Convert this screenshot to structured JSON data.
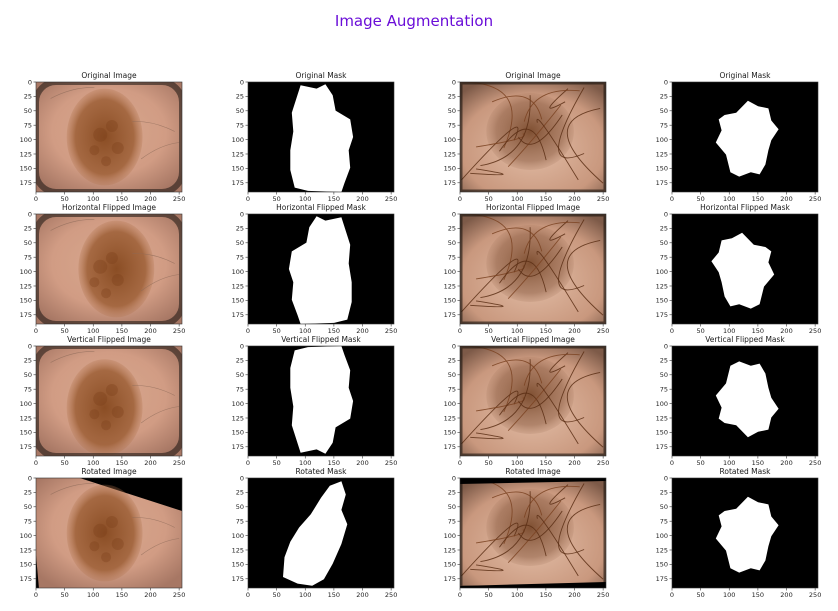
{
  "figure_title": "Image Augmentation",
  "chart_data": {
    "type": "image-grid",
    "title": "Image Augmentation",
    "rows": 4,
    "cols": 4,
    "panel_titles": [
      [
        "Original Image",
        "Original Mask",
        "Original Image",
        "Original Mask"
      ],
      [
        "Horizontal Flipped Image",
        "Horizontal Flipped Mask",
        "Horizontal Flipped Image",
        "Horizontal Flipped Mask"
      ],
      [
        "Vertical Flipped Image",
        "Vertical Flipped Mask",
        "Vertical Flipped Image",
        "Vertical Flipped Mask"
      ],
      [
        "Rotated Image",
        "Rotated Mask",
        "Rotated Image",
        "Rotated Mask"
      ]
    ],
    "xticks": [
      0,
      50,
      100,
      150,
      200,
      250
    ],
    "yticks": [
      0,
      25,
      50,
      75,
      100,
      125,
      150,
      175
    ],
    "xlim": [
      0,
      255
    ],
    "ylim": [
      191,
      0
    ]
  },
  "colors": {
    "title": "#6a0dd8",
    "mask_background": "#000000",
    "mask_foreground": "#ffffff",
    "skin": "#d9a48c",
    "lesion": "#8f5329"
  }
}
